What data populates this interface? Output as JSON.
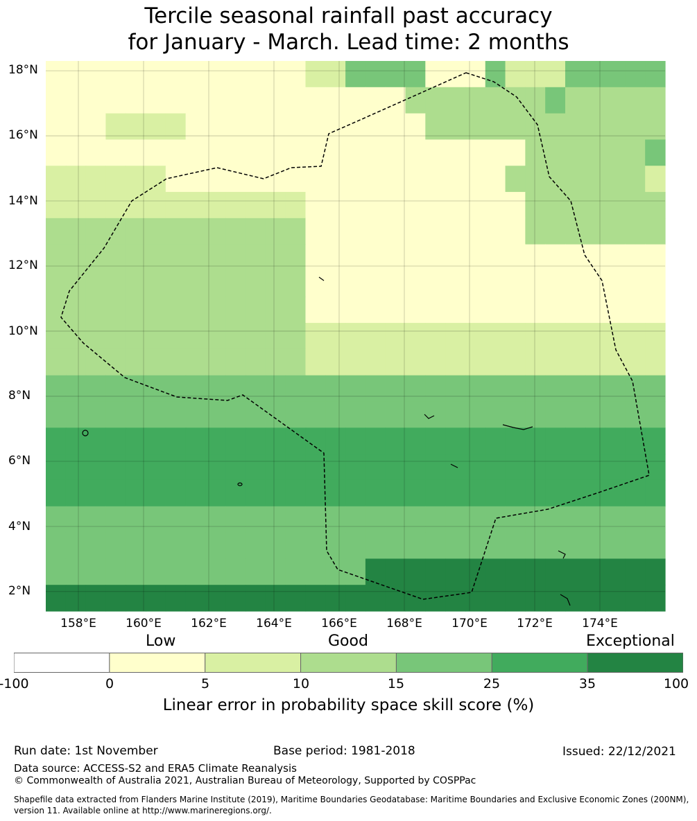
{
  "title": {
    "line1": "Tercile seasonal rainfall past accuracy",
    "line2": "for January - March. Lead time: 2 months"
  },
  "map": {
    "lat_labels": [
      "18°N",
      "16°N",
      "14°N",
      "12°N",
      "10°N",
      "8°N",
      "6°N",
      "4°N",
      "2°N"
    ],
    "lon_labels": [
      "158°E",
      "160°E",
      "162°E",
      "164°E",
      "166°E",
      "168°E",
      "170°E",
      "172°E",
      "174°E"
    ],
    "extent": {
      "lon_min": 157,
      "lon_max": 176,
      "lat_min": 1.4,
      "lat_max": 18.3
    },
    "eez_boundary_label": "eez-boundary",
    "grid_rows_top_to_bottom": [
      "0000000000000113333000311133333",
      "0000000000000000002222222322222",
      "0001111000000000000222222222222",
      "0000000000000000000000002222223",
      "1111110000000000000000022222221",
      "1111111111111000000000002222222",
      "2222222222222000000000002222222",
      "2222222222222000000000000000000",
      "2222222222222000000000000000000",
      "2222222222222000000000000000000",
      "2222222222222111111111111111111",
      "2222222222222111111111111111111",
      "3333333333333333333333333333333",
      "3333333333333333333333333333333",
      "4444444444444444444444444444444",
      "4444444444444444444444444444444",
      "4444444444444444444444444444444",
      "3333333333333333333333333333333",
      "3333333333333333333333333333333",
      "3333333333333333555555555555555",
      "5555555555555555555555555555555"
    ]
  },
  "legend": {
    "categories": [
      "Low",
      "Good",
      "Exceptional"
    ],
    "ticks": [
      "-100",
      "0",
      "5",
      "10",
      "15",
      "25",
      "35",
      "100"
    ],
    "colors": [
      "#ffffff",
      "#ffffcc",
      "#d9f0a3",
      "#addd8e",
      "#78c679",
      "#41ab5d",
      "#238443"
    ],
    "title": "Linear error in probability space skill score (%)"
  },
  "footer": {
    "run_date": "Run date: 1st November",
    "base_period": "Base period: 1981-2018",
    "issued": "Issued: 22/12/2021",
    "data_source": "Data source: ACCESS-S2 and ERA5 Climate Reanalysis",
    "copyright": "© Commonwealth of Australia 2021, Australian Bureau of Meteorology, Supported by COSPPac",
    "shapefile_line1": "Shapefile data extracted from Flanders Marine Institute (2019), Maritime Boundaries Geodatabase: Maritime Boundaries and Exclusive Economic Zones (200NM),",
    "shapefile_line2": "version 11. Available online at http://www.marineregions.org/."
  }
}
